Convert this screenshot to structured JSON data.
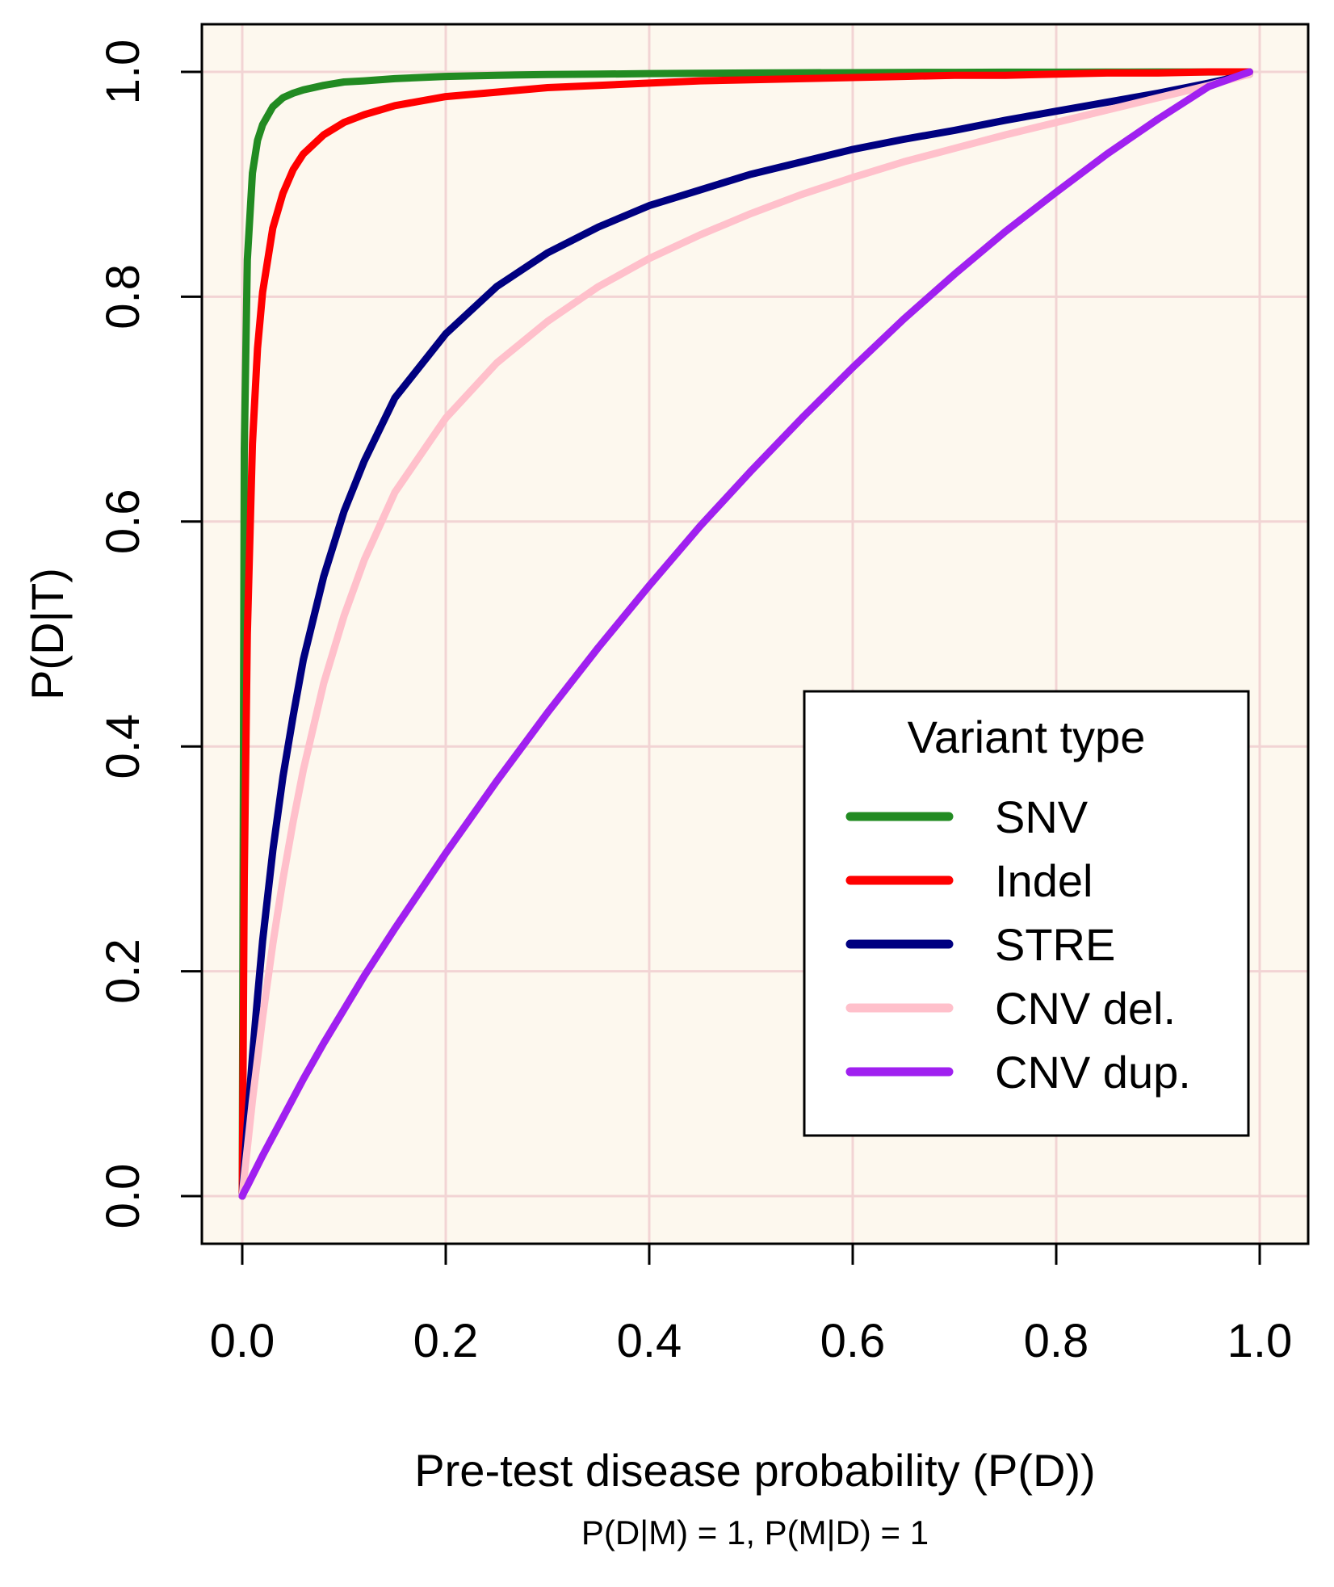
{
  "chart_data": {
    "type": "line",
    "title": "",
    "xlabel": "Pre-test disease probability (P(D))",
    "xlabel_sub": "P(D|M) = 1, P(M|D) = 1",
    "ylabel": "P(D|T)",
    "xlim": [
      0,
      1
    ],
    "ylim": [
      0,
      1
    ],
    "x_ticks": [
      0.0,
      0.2,
      0.4,
      0.6,
      0.8,
      1.0
    ],
    "x_tick_labels": [
      "0.0",
      "0.2",
      "0.4",
      "0.6",
      "0.8",
      "1.0"
    ],
    "y_ticks": [
      0.0,
      0.2,
      0.4,
      0.6,
      0.8,
      1.0
    ],
    "y_tick_labels": [
      "0.0",
      "0.2",
      "0.4",
      "0.6",
      "0.8",
      "1.0"
    ],
    "grid": true,
    "background_color": "#fdf8ee",
    "grid_color": "#f2d4d4",
    "legend": {
      "title": "Variant type",
      "position": "bottom-right"
    },
    "x": [
      0,
      0.002,
      0.005,
      0.01,
      0.015,
      0.02,
      0.03,
      0.04,
      0.05,
      0.06,
      0.08,
      0.1,
      0.12,
      0.15,
      0.2,
      0.25,
      0.3,
      0.35,
      0.4,
      0.45,
      0.5,
      0.55,
      0.6,
      0.65,
      0.7,
      0.75,
      0.8,
      0.85,
      0.9,
      0.95,
      0.99
    ],
    "series": [
      {
        "name": "SNV",
        "color": "#228b22",
        "values": [
          0,
          0.664,
          0.833,
          0.91,
          0.939,
          0.953,
          0.969,
          0.977,
          0.981,
          0.984,
          0.988,
          0.991,
          0.992,
          0.994,
          0.996,
          0.997,
          0.9976,
          0.998,
          0.9985,
          0.9988,
          0.999,
          0.9992,
          0.9993,
          0.9995,
          0.9996,
          0.9997,
          0.9997,
          0.9998,
          0.9999,
          0.9999,
          1.0
        ]
      },
      {
        "name": "Indel",
        "color": "#ff0000",
        "values": [
          0,
          0.284,
          0.5,
          0.669,
          0.754,
          0.804,
          0.861,
          0.892,
          0.913,
          0.927,
          0.944,
          0.955,
          0.962,
          0.97,
          0.978,
          0.982,
          0.986,
          0.988,
          0.99,
          0.992,
          0.993,
          0.994,
          0.995,
          0.996,
          0.997,
          0.997,
          0.998,
          0.999,
          0.999,
          1.0,
          1.0
        ]
      },
      {
        "name": "STRE",
        "color": "#000080",
        "values": [
          0,
          0.027,
          0.065,
          0.124,
          0.177,
          0.227,
          0.307,
          0.373,
          0.427,
          0.477,
          0.551,
          0.609,
          0.654,
          0.71,
          0.767,
          0.809,
          0.839,
          0.862,
          0.881,
          0.895,
          0.909,
          0.92,
          0.931,
          0.94,
          0.948,
          0.957,
          0.965,
          0.973,
          0.981,
          0.99,
          0.998
        ]
      },
      {
        "name": "CNV del.",
        "color": "#ffc0cb",
        "values": [
          0,
          0.018,
          0.043,
          0.085,
          0.122,
          0.159,
          0.224,
          0.282,
          0.333,
          0.379,
          0.456,
          0.516,
          0.566,
          0.626,
          0.692,
          0.741,
          0.778,
          0.809,
          0.834,
          0.855,
          0.874,
          0.891,
          0.906,
          0.92,
          0.932,
          0.944,
          0.955,
          0.966,
          0.977,
          0.988,
          0.998
        ]
      },
      {
        "name": "CNV dup.",
        "color": "#a020f0",
        "values": [
          0,
          0.004,
          0.009,
          0.018,
          0.027,
          0.036,
          0.053,
          0.07,
          0.087,
          0.104,
          0.136,
          0.166,
          0.196,
          0.238,
          0.305,
          0.369,
          0.43,
          0.488,
          0.543,
          0.596,
          0.645,
          0.692,
          0.737,
          0.78,
          0.82,
          0.858,
          0.893,
          0.927,
          0.958,
          0.987,
          1.0
        ]
      }
    ]
  }
}
